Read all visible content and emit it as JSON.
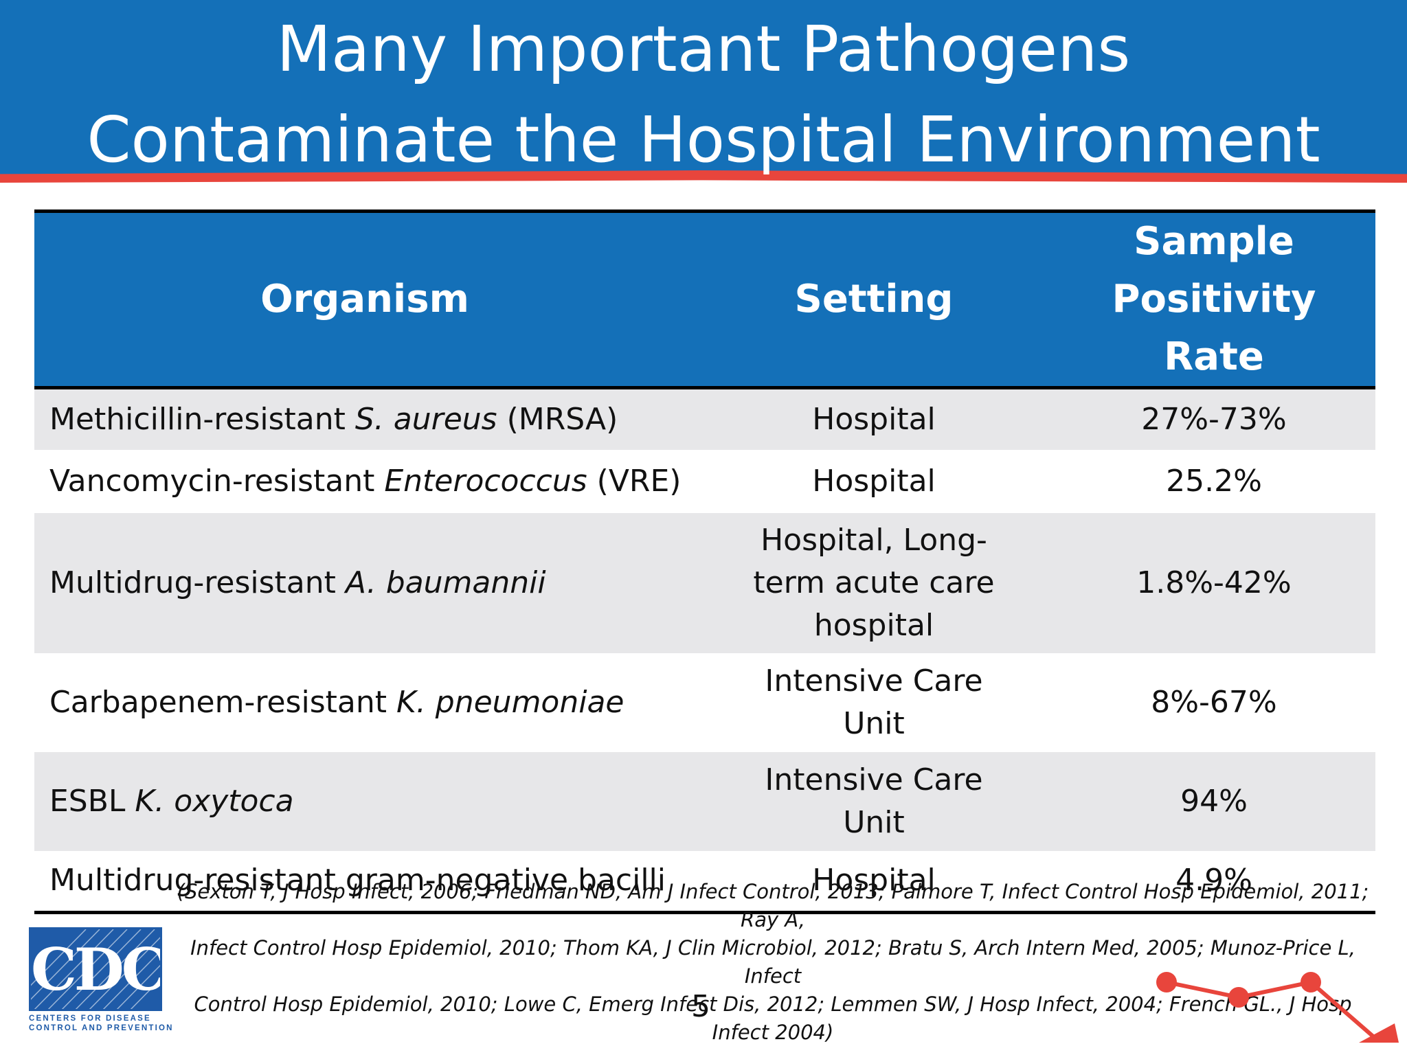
{
  "header": {
    "title_line1": "Many Important Pathogens",
    "title_line2": "Contaminate the Hospital Environment"
  },
  "table": {
    "columns": [
      "Organism",
      "Setting",
      "Sample Positivity Rate"
    ],
    "column_3_lines": [
      "Sample Positivity",
      "Rate"
    ],
    "rows": [
      {
        "organism_prefix": "Methicillin-resistant ",
        "organism_italic": "S. aureus",
        "organism_suffix": " (MRSA)",
        "setting_lines": [
          "Hospital"
        ],
        "rate": "27%-73%"
      },
      {
        "organism_prefix": "Vancomycin-resistant ",
        "organism_italic": "Enterococcus",
        "organism_suffix": " (VRE)",
        "setting_lines": [
          "Hospital"
        ],
        "rate": "25.2%"
      },
      {
        "organism_prefix": "Multidrug-resistant ",
        "organism_italic": "A. baumannii",
        "organism_suffix": "",
        "setting_lines": [
          "Hospital, Long-",
          "term acute care",
          "hospital"
        ],
        "rate": "1.8%-42%"
      },
      {
        "organism_prefix": "Carbapenem-resistant ",
        "organism_italic": "K. pneumoniae",
        "organism_suffix": "",
        "setting_lines": [
          "Intensive Care",
          "Unit"
        ],
        "rate": "8%-67%"
      },
      {
        "organism_prefix": "ESBL ",
        "organism_italic": "K. oxytoca",
        "organism_suffix": "",
        "setting_lines": [
          "Intensive Care",
          "Unit"
        ],
        "rate": "94%"
      },
      {
        "organism_prefix": "Multidrug-resistant gram-negative bacilli",
        "organism_italic": "",
        "organism_suffix": "",
        "setting_lines": [
          "Hospital"
        ],
        "rate": "4.9%"
      }
    ]
  },
  "references": {
    "line1": "(Sexton T, J Hosp Infect, 2006; Friedman ND, Am J Infect Control, 2013; Palmore T, Infect Control Hosp Epidemiol, 2011; Ray A,",
    "line2": "Infect Control Hosp Epidemiol, 2010; Thom KA, J Clin Microbiol, 2012; Bratu S, Arch Intern Med, 2005; Munoz-Price L, Infect",
    "line3": "Control Hosp Epidemiol, 2010; Lowe C, Emerg Infect Dis, 2012; Lemmen SW, J Hosp Infect, 2004; French GL., J Hosp Infect 2004)"
  },
  "footer": {
    "page_number": "5",
    "logo_text": "CDC",
    "logo_sub_line1": "CENTERS FOR DISEASE",
    "logo_sub_line2": "CONTROL AND PREVENTION"
  },
  "colors": {
    "header_blue": "#1470b8",
    "accent_red": "#e8453c",
    "row_shade": "#e7e7e9",
    "logo_blue": "#1f5ba8"
  }
}
